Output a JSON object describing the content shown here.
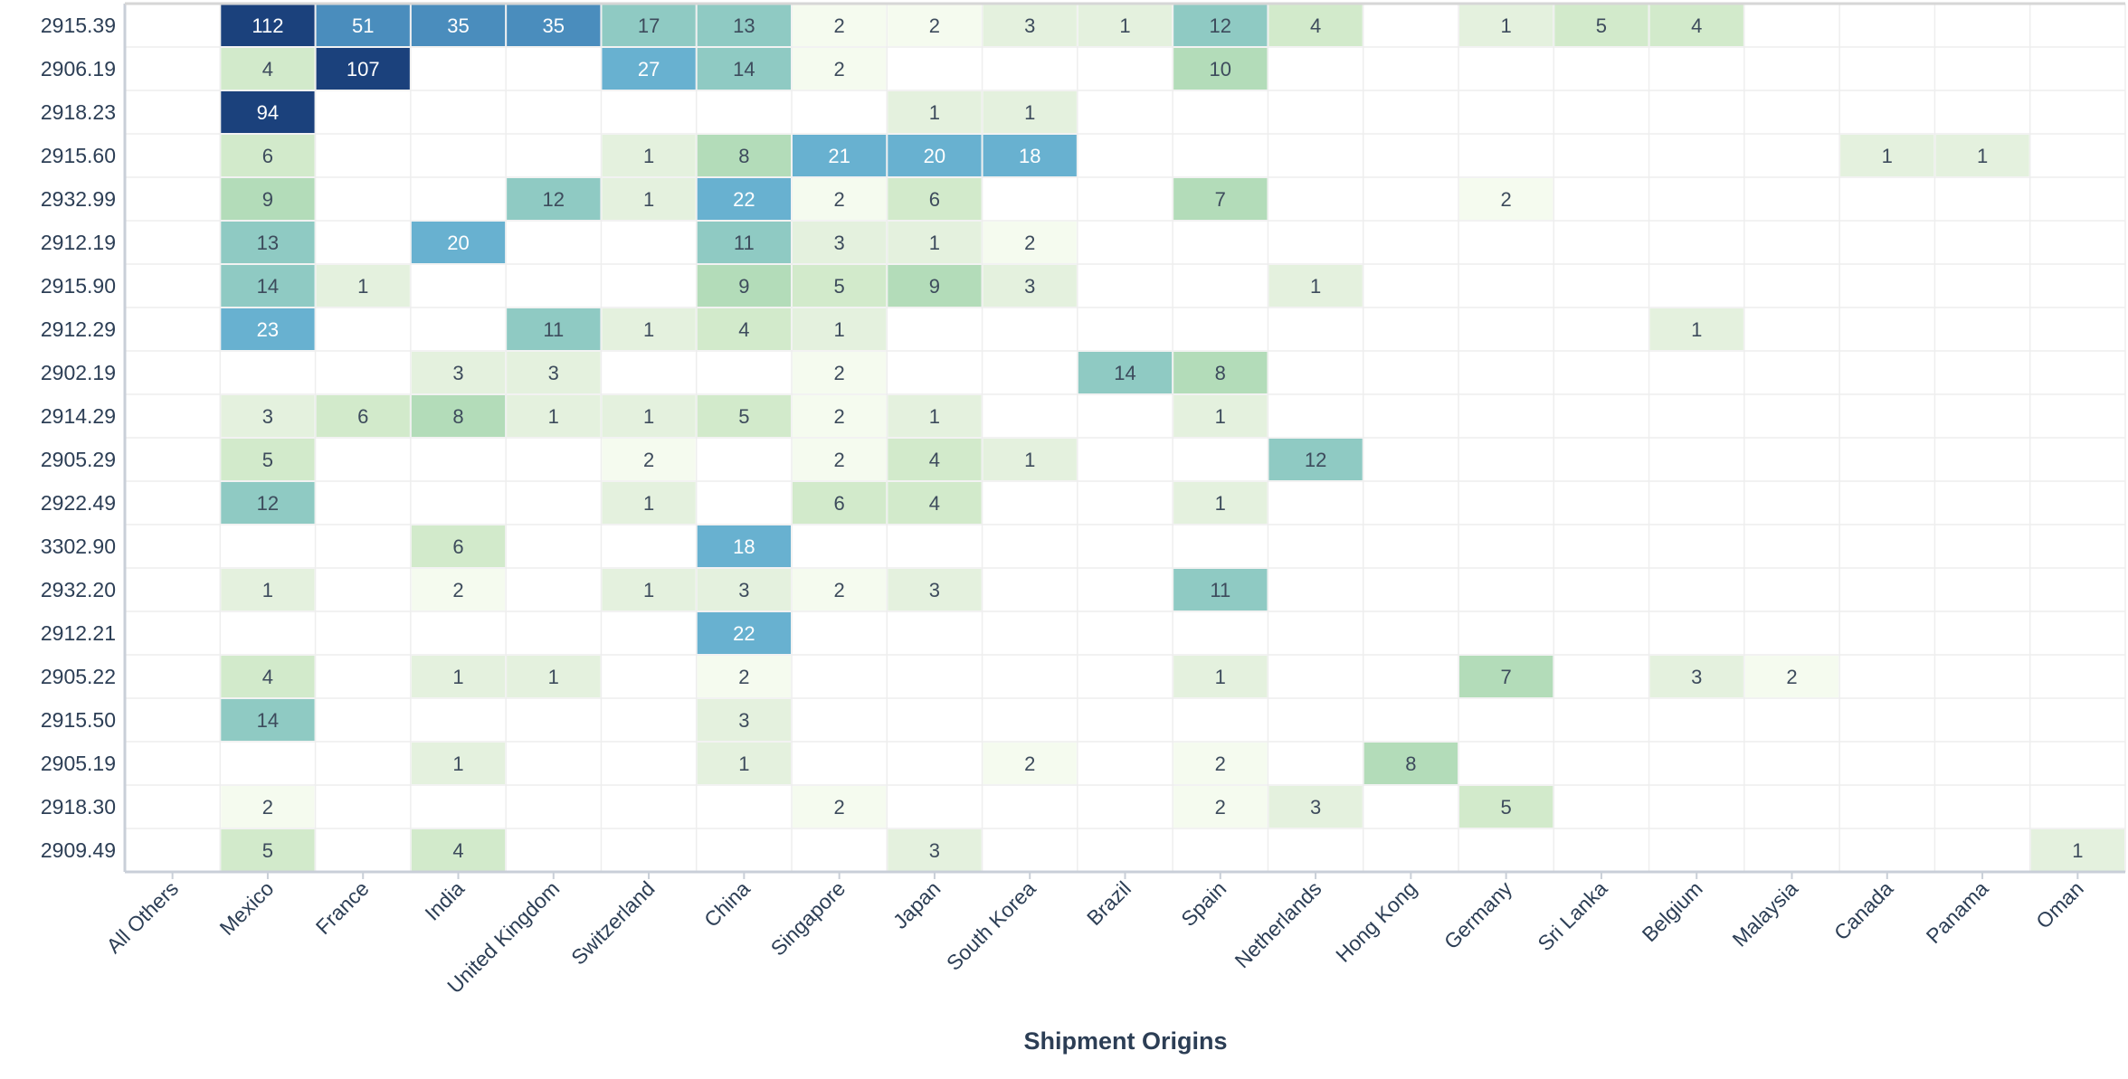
{
  "chart_data": {
    "type": "heatmap",
    "title": "",
    "xlabel": "Shipment Origins",
    "ylabel": "",
    "columns": [
      "All Others",
      "Mexico",
      "France",
      "India",
      "United Kingdom",
      "Switzerland",
      "China",
      "Singapore",
      "Japan",
      "South Korea",
      "Brazil",
      "Spain",
      "Netherlands",
      "Hong Kong",
      "Germany",
      "Sri Lanka",
      "Belgium",
      "Malaysia",
      "Canada",
      "Panama",
      "Oman"
    ],
    "rows": [
      "2915.39",
      "2906.19",
      "2918.23",
      "2915.60",
      "2932.99",
      "2912.19",
      "2915.90",
      "2912.29",
      "2902.19",
      "2914.29",
      "2905.29",
      "2922.49",
      "3302.90",
      "2932.20",
      "2912.21",
      "2905.22",
      "2915.50",
      "2905.19",
      "2918.30",
      "2909.49"
    ],
    "values": [
      [
        null,
        112,
        51,
        35,
        35,
        17,
        13,
        2,
        2,
        3,
        1,
        12,
        4,
        null,
        1,
        5,
        4,
        null,
        null,
        null,
        null
      ],
      [
        null,
        4,
        107,
        null,
        null,
        27,
        14,
        2,
        null,
        null,
        null,
        10,
        null,
        null,
        null,
        null,
        null,
        null,
        null,
        null,
        null
      ],
      [
        null,
        94,
        null,
        null,
        null,
        null,
        null,
        null,
        1,
        1,
        null,
        null,
        null,
        null,
        null,
        null,
        null,
        null,
        null,
        null,
        null
      ],
      [
        null,
        6,
        null,
        null,
        null,
        1,
        8,
        21,
        20,
        18,
        null,
        null,
        null,
        null,
        null,
        null,
        null,
        null,
        1,
        1,
        null
      ],
      [
        null,
        9,
        null,
        null,
        12,
        1,
        22,
        2,
        6,
        null,
        null,
        7,
        null,
        null,
        2,
        null,
        null,
        null,
        null,
        null,
        null
      ],
      [
        null,
        13,
        null,
        20,
        null,
        null,
        11,
        3,
        1,
        2,
        null,
        null,
        null,
        null,
        null,
        null,
        null,
        null,
        null,
        null,
        null
      ],
      [
        null,
        14,
        1,
        null,
        null,
        null,
        9,
        5,
        9,
        3,
        null,
        null,
        1,
        null,
        null,
        null,
        null,
        null,
        null,
        null,
        null
      ],
      [
        null,
        23,
        null,
        null,
        11,
        1,
        4,
        1,
        null,
        null,
        null,
        null,
        null,
        null,
        null,
        null,
        1,
        null,
        null,
        null,
        null
      ],
      [
        null,
        null,
        null,
        3,
        3,
        null,
        null,
        2,
        null,
        null,
        14,
        8,
        null,
        null,
        null,
        null,
        null,
        null,
        null,
        null,
        null
      ],
      [
        null,
        3,
        6,
        8,
        1,
        1,
        5,
        2,
        1,
        null,
        null,
        1,
        null,
        null,
        null,
        null,
        null,
        null,
        null,
        null,
        null
      ],
      [
        null,
        5,
        null,
        null,
        null,
        2,
        null,
        2,
        4,
        1,
        null,
        null,
        12,
        null,
        null,
        null,
        null,
        null,
        null,
        null,
        null
      ],
      [
        null,
        12,
        null,
        null,
        null,
        1,
        null,
        6,
        4,
        null,
        null,
        1,
        null,
        null,
        null,
        null,
        null,
        null,
        null,
        null,
        null
      ],
      [
        null,
        null,
        null,
        6,
        null,
        null,
        18,
        null,
        null,
        null,
        null,
        null,
        null,
        null,
        null,
        null,
        null,
        null,
        null,
        null,
        null
      ],
      [
        null,
        1,
        null,
        2,
        null,
        1,
        3,
        2,
        3,
        null,
        null,
        11,
        null,
        null,
        null,
        null,
        null,
        null,
        null,
        null,
        null
      ],
      [
        null,
        null,
        null,
        null,
        null,
        null,
        22,
        null,
        null,
        null,
        null,
        null,
        null,
        null,
        null,
        null,
        null,
        null,
        null,
        null,
        null
      ],
      [
        null,
        4,
        null,
        1,
        1,
        null,
        2,
        null,
        null,
        null,
        null,
        1,
        null,
        null,
        7,
        null,
        3,
        2,
        null,
        null,
        null
      ],
      [
        null,
        14,
        null,
        null,
        null,
        null,
        3,
        null,
        null,
        null,
        null,
        null,
        null,
        null,
        null,
        null,
        null,
        null,
        null,
        null,
        null
      ],
      [
        null,
        null,
        null,
        1,
        null,
        null,
        1,
        null,
        null,
        2,
        null,
        2,
        null,
        8,
        null,
        null,
        null,
        null,
        null,
        null,
        null
      ],
      [
        null,
        2,
        null,
        null,
        null,
        null,
        null,
        2,
        null,
        null,
        null,
        2,
        3,
        null,
        5,
        null,
        null,
        null,
        null,
        null,
        null
      ],
      [
        null,
        5,
        null,
        4,
        null,
        null,
        null,
        null,
        3,
        null,
        null,
        null,
        null,
        null,
        null,
        null,
        null,
        null,
        null,
        null,
        1
      ]
    ],
    "color_scale": [
      {
        "max": 1,
        "color": "#e4f1de"
      },
      {
        "max": 2,
        "color": "#f5fbef"
      },
      {
        "max": 3,
        "color": "#e4f1de"
      },
      {
        "max": 6,
        "color": "#d2eacb"
      },
      {
        "max": 10,
        "color": "#b3dcb9"
      },
      {
        "max": 17,
        "color": "#8fcac3"
      },
      {
        "max": 27,
        "color": "#68b1d0"
      },
      {
        "max": 60,
        "color": "#4a8dbd"
      },
      {
        "max": 1000,
        "color": "#1b417c"
      }
    ],
    "text_color": "#3d4b5c",
    "text_color_dark_cell": "#ffffff",
    "grid": true
  }
}
